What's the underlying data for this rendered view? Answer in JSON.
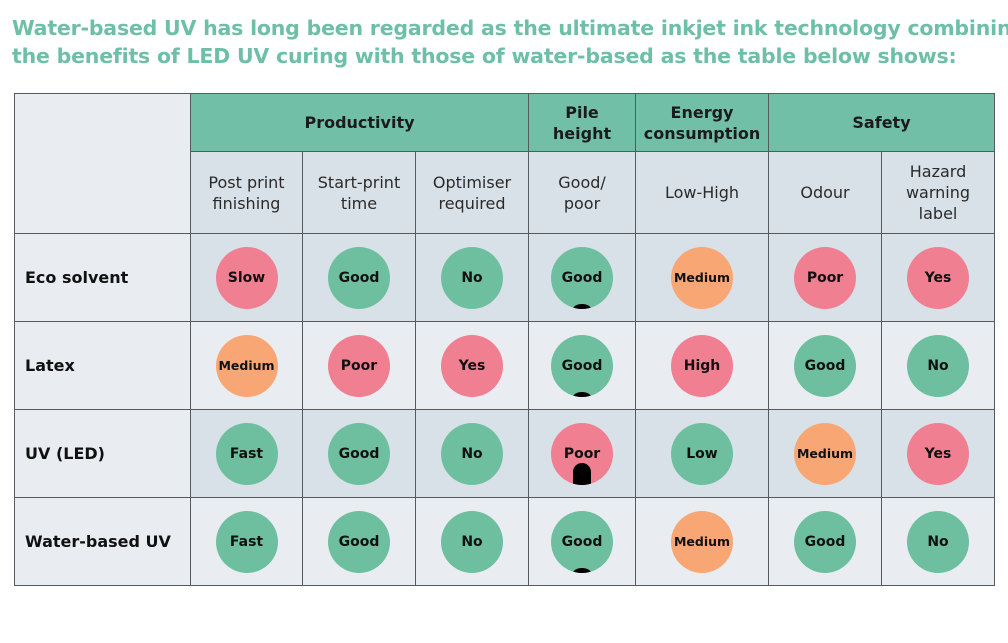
{
  "intro": {
    "line1": "Water-based UV has long been regarded as the ultimate inkjet ink technology combining",
    "line2": "the benefits of LED UV curing with those of water-based as the table below shows:"
  },
  "groups": {
    "productivity": "Productivity",
    "pile_height_1": "Pile",
    "pile_height_2": "height",
    "energy_1": "Energy",
    "energy_2": "consumption",
    "safety": "Safety"
  },
  "subheaders": {
    "post_print_1": "Post print",
    "post_print_2": "finishing",
    "start_print_1": "Start-print",
    "start_print_2": "time",
    "optimiser_1": "Optimiser",
    "optimiser_2": "required",
    "good_poor_1": "Good/",
    "good_poor_2": "poor",
    "low_high": "Low-High",
    "odour": "Odour",
    "hazard_1": "Hazard",
    "hazard_2": "warning",
    "hazard_3": "label"
  },
  "colors": {
    "green": "#6dbfa0",
    "pink": "#f07f92",
    "orange": "#f8a774",
    "header_teal": "#72bfa8"
  },
  "rows": [
    {
      "label": "Eco solvent",
      "cells": [
        {
          "text": "Slow",
          "color": "pink"
        },
        {
          "text": "Good",
          "color": "green"
        },
        {
          "text": "No",
          "color": "green"
        },
        {
          "text": "Good",
          "color": "green",
          "pile": "low"
        },
        {
          "text": "Medium",
          "color": "orange"
        },
        {
          "text": "Poor",
          "color": "pink"
        },
        {
          "text": "Yes",
          "color": "pink"
        }
      ]
    },
    {
      "label": "Latex",
      "cells": [
        {
          "text": "Medium",
          "color": "orange"
        },
        {
          "text": "Poor",
          "color": "pink"
        },
        {
          "text": "Yes",
          "color": "pink"
        },
        {
          "text": "Good",
          "color": "green",
          "pile": "low"
        },
        {
          "text": "High",
          "color": "pink"
        },
        {
          "text": "Good",
          "color": "green"
        },
        {
          "text": "No",
          "color": "green"
        }
      ]
    },
    {
      "label": "UV (LED)",
      "cells": [
        {
          "text": "Fast",
          "color": "green"
        },
        {
          "text": "Good",
          "color": "green"
        },
        {
          "text": "No",
          "color": "green"
        },
        {
          "text": "Poor",
          "color": "pink",
          "pile": "high"
        },
        {
          "text": "Low",
          "color": "green"
        },
        {
          "text": "Medium",
          "color": "orange"
        },
        {
          "text": "Yes",
          "color": "pink"
        }
      ]
    },
    {
      "label": "Water-based UV",
      "cells": [
        {
          "text": "Fast",
          "color": "green"
        },
        {
          "text": "Good",
          "color": "green"
        },
        {
          "text": "No",
          "color": "green"
        },
        {
          "text": "Good",
          "color": "green",
          "pile": "low"
        },
        {
          "text": "Medium",
          "color": "orange"
        },
        {
          "text": "Good",
          "color": "green"
        },
        {
          "text": "No",
          "color": "green"
        }
      ]
    }
  ]
}
